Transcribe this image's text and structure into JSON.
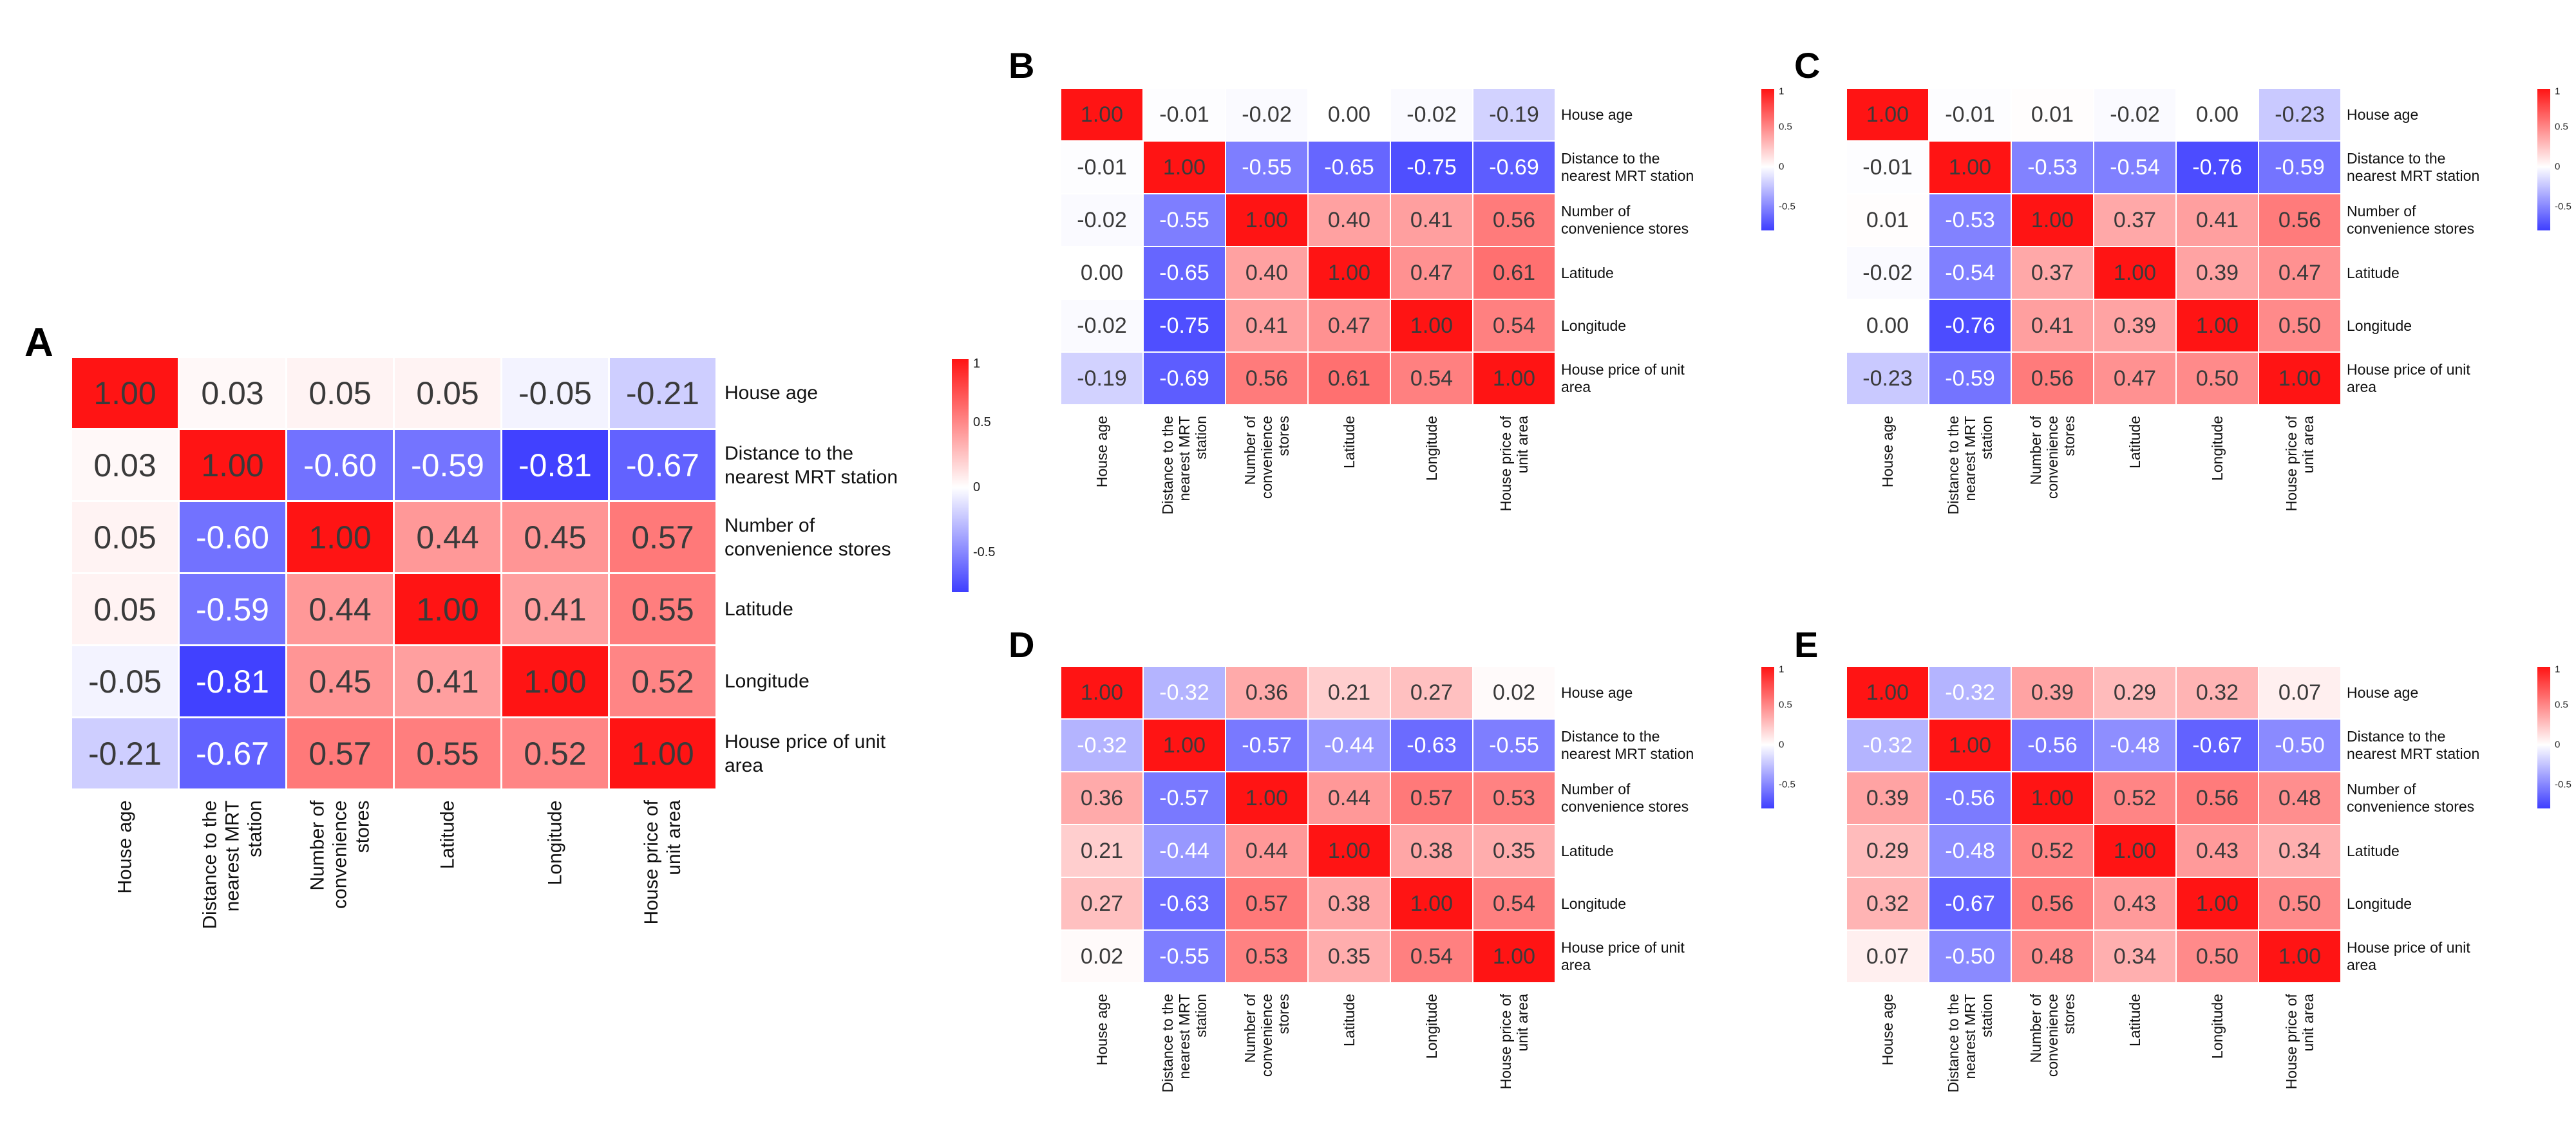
{
  "figure": {
    "description": "Five correlation heatmaps of real-estate variables",
    "panel_letters": [
      "A",
      "B",
      "C",
      "D",
      "E"
    ]
  },
  "variables": [
    "House age",
    "Distance to the nearest MRT station",
    "Number of convenience stores",
    "Latitude",
    "Longitude",
    "House price of unit area"
  ],
  "labels": {
    "rows": [
      [
        "House age"
      ],
      [
        "Distance to the",
        "nearest MRT station"
      ],
      [
        "Number of",
        "convenience stores"
      ],
      [
        "Latitude"
      ],
      [
        "Longitude"
      ],
      [
        "House price of unit",
        "area"
      ]
    ],
    "cols": [
      [
        "House age"
      ],
      [
        "Distance to the",
        "nearest MRT",
        "station"
      ],
      [
        "Number of",
        "convenience",
        "stores"
      ],
      [
        "Latitude"
      ],
      [
        "Longitude"
      ],
      [
        "House price of",
        "unit area"
      ]
    ]
  },
  "colorbar": {
    "ticks": [
      {
        "label": "1",
        "pos": 0.02
      },
      {
        "label": "0.5",
        "pos": 0.27
      },
      {
        "label": "0",
        "pos": 0.55
      },
      {
        "label": "-0.5",
        "pos": 0.83
      }
    ]
  },
  "colors": {
    "positive_max": "#ff1414",
    "zero": "#ffffff",
    "negative_max": "#3e3eff",
    "text_dark": "#3a3a3a",
    "text_light": "#ffffff"
  },
  "chart_data": [
    {
      "type": "heatmap",
      "panel": "A",
      "categories": [
        "House age",
        "Distance to the nearest MRT station",
        "Number of convenience stores",
        "Latitude",
        "Longitude",
        "House price of unit area"
      ],
      "value_range": [
        -1,
        1
      ],
      "matrix": [
        [
          1.0,
          0.03,
          0.05,
          0.05,
          -0.05,
          -0.21
        ],
        [
          0.03,
          1.0,
          -0.6,
          -0.59,
          -0.81,
          -0.67
        ],
        [
          0.05,
          -0.6,
          1.0,
          0.44,
          0.45,
          0.57
        ],
        [
          0.05,
          -0.59,
          0.44,
          1.0,
          0.41,
          0.55
        ],
        [
          -0.05,
          -0.81,
          0.45,
          0.41,
          1.0,
          0.52
        ],
        [
          -0.21,
          -0.67,
          0.57,
          0.55,
          0.52,
          1.0
        ]
      ]
    },
    {
      "type": "heatmap",
      "panel": "B",
      "categories": [
        "House age",
        "Distance to the nearest MRT station",
        "Number of convenience stores",
        "Latitude",
        "Longitude",
        "House price of unit area"
      ],
      "value_range": [
        -1,
        1
      ],
      "matrix": [
        [
          1.0,
          -0.01,
          -0.02,
          0.0,
          -0.02,
          -0.19
        ],
        [
          -0.01,
          1.0,
          -0.55,
          -0.65,
          -0.75,
          -0.69
        ],
        [
          -0.02,
          -0.55,
          1.0,
          0.4,
          0.41,
          0.56
        ],
        [
          0.0,
          -0.65,
          0.4,
          1.0,
          0.47,
          0.61
        ],
        [
          -0.02,
          -0.75,
          0.41,
          0.47,
          1.0,
          0.54
        ],
        [
          -0.19,
          -0.69,
          0.56,
          0.61,
          0.54,
          1.0
        ]
      ]
    },
    {
      "type": "heatmap",
      "panel": "C",
      "categories": [
        "House age",
        "Distance to the nearest MRT station",
        "Number of convenience stores",
        "Latitude",
        "Longitude",
        "House price of unit area"
      ],
      "value_range": [
        -1,
        1
      ],
      "matrix": [
        [
          1.0,
          -0.01,
          0.01,
          -0.02,
          0.0,
          -0.23
        ],
        [
          -0.01,
          1.0,
          -0.53,
          -0.54,
          -0.76,
          -0.59
        ],
        [
          0.01,
          -0.53,
          1.0,
          0.37,
          0.41,
          0.56
        ],
        [
          -0.02,
          -0.54,
          0.37,
          1.0,
          0.39,
          0.47
        ],
        [
          0.0,
          -0.76,
          0.41,
          0.39,
          1.0,
          0.5
        ],
        [
          -0.23,
          -0.59,
          0.56,
          0.47,
          0.5,
          1.0
        ]
      ]
    },
    {
      "type": "heatmap",
      "panel": "D",
      "categories": [
        "House age",
        "Distance to the nearest MRT station",
        "Number of convenience stores",
        "Latitude",
        "Longitude",
        "House price of unit area"
      ],
      "value_range": [
        -1,
        1
      ],
      "matrix": [
        [
          1.0,
          -0.32,
          0.36,
          0.21,
          0.27,
          0.02
        ],
        [
          -0.32,
          1.0,
          -0.57,
          -0.44,
          -0.63,
          -0.55
        ],
        [
          0.36,
          -0.57,
          1.0,
          0.44,
          0.57,
          0.53
        ],
        [
          0.21,
          -0.44,
          0.44,
          1.0,
          0.38,
          0.35
        ],
        [
          0.27,
          -0.63,
          0.57,
          0.38,
          1.0,
          0.54
        ],
        [
          0.02,
          -0.55,
          0.53,
          0.35,
          0.54,
          1.0
        ]
      ]
    },
    {
      "type": "heatmap",
      "panel": "E",
      "categories": [
        "House age",
        "Distance to the nearest MRT station",
        "Number of convenience stores",
        "Latitude",
        "Longitude",
        "House price of unit area"
      ],
      "value_range": [
        -1,
        1
      ],
      "matrix": [
        [
          1.0,
          -0.32,
          0.39,
          0.29,
          0.32,
          0.07
        ],
        [
          -0.32,
          1.0,
          -0.56,
          -0.48,
          -0.67,
          -0.5
        ],
        [
          0.39,
          -0.56,
          1.0,
          0.52,
          0.56,
          0.48
        ],
        [
          0.29,
          -0.48,
          0.52,
          1.0,
          0.43,
          0.34
        ],
        [
          0.32,
          -0.67,
          0.56,
          0.43,
          1.0,
          0.5
        ],
        [
          0.07,
          -0.5,
          0.48,
          0.34,
          0.5,
          1.0
        ]
      ]
    }
  ]
}
